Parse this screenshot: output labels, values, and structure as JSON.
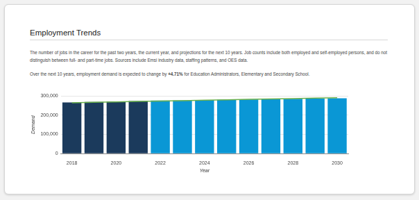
{
  "header": {
    "title": "Employment Trends"
  },
  "paragraphs": [
    {
      "text": "The number of jobs in the career for the past two years, the current year, and projections for the next 10 years. Job counts include both employed and self-employed persons, and do not distinguish between full- and part-time jobs. Sources include Emsi industry data, staffing patterns, and OES data."
    },
    {
      "before": "Over the next 10 years, employment demand is expected to change by ",
      "bold": "+4.71%",
      "after": " for Education Administrators, Elementary and Secondary School."
    }
  ],
  "chart_data": {
    "type": "bar",
    "categories": [
      "2018",
      null,
      "2020",
      null,
      "2022",
      null,
      "2024",
      null,
      "2026",
      null,
      "2028",
      null,
      "2030"
    ],
    "series": [
      {
        "type": "bar",
        "colors": [
          "#1b3a5c",
          "#1b3a5c",
          "#1b3a5c",
          "#1b3a5c",
          "#0a97d5",
          "#0a97d5",
          "#0a97d5",
          "#0a97d5",
          "#0a97d5",
          "#0a97d5",
          "#0a97d5",
          "#0a97d5",
          "#0a97d5"
        ],
        "values": [
          266000,
          269000,
          271000,
          274000,
          276000,
          277500,
          279000,
          280500,
          282000,
          283500,
          285000,
          286500,
          288000
        ]
      },
      {
        "type": "line",
        "color": "#6ab04c",
        "values": [
          265000,
          267200,
          269300,
          271500,
          273700,
          275800,
          278000,
          280200,
          282300,
          284500,
          286700,
          288800,
          291000
        ]
      }
    ],
    "xlabel": "Year",
    "ylabel": "Demand",
    "ylim": [
      0,
      300000
    ],
    "yticks": [
      0,
      {
        "value": 100000,
        "label": "100,000"
      },
      {
        "value": 200000,
        "label": "200,000"
      },
      {
        "value": 300000,
        "label": "300,000"
      }
    ],
    "grid": true
  }
}
